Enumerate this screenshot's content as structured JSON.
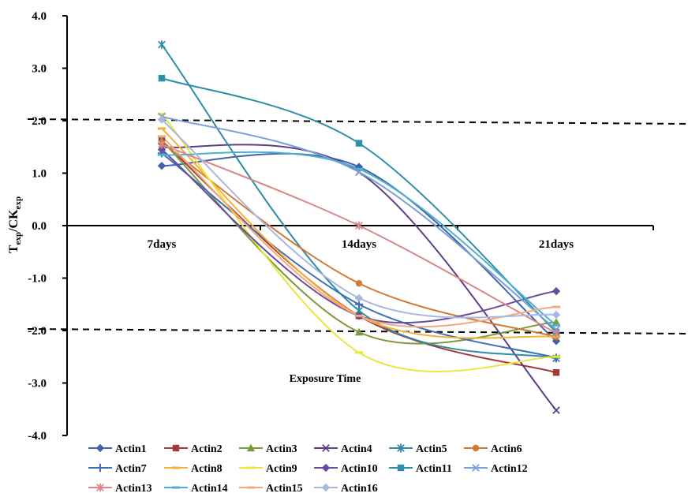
{
  "chart_data": {
    "type": "line",
    "title": "",
    "xlabel": "Exposure Time",
    "ylabel": {
      "main": "T",
      "sub1": "exp",
      "mid": "/CK",
      "sub2": "exp"
    },
    "categories": [
      "7days",
      "14days",
      "21days"
    ],
    "ylim": [
      -4.0,
      4.0
    ],
    "yticks": [
      "4.0",
      "3.0",
      "2.0",
      "1.0",
      "0.0",
      "-1.0",
      "-2.0",
      "-3.0",
      "-4.0"
    ],
    "ytick_values": [
      4,
      3,
      2,
      1,
      0,
      -1,
      -2,
      -3,
      -4
    ],
    "threshold_lines": [
      2.0,
      -2.0
    ],
    "grid": false,
    "legend_position": "bottom",
    "series": [
      {
        "name": "Actin1",
        "values": [
          1.14,
          1.12,
          -2.2
        ],
        "color": "#3f62a8",
        "marker": "diamond"
      },
      {
        "name": "Actin2",
        "values": [
          1.62,
          -1.72,
          -2.8
        ],
        "color": "#a43a38",
        "marker": "square"
      },
      {
        "name": "Actin3",
        "values": [
          1.62,
          -2.03,
          -1.84
        ],
        "color": "#7a9a3c",
        "marker": "triangle"
      },
      {
        "name": "Actin4",
        "values": [
          1.5,
          1.02,
          -3.52
        ],
        "color": "#5c3f87",
        "marker": "x"
      },
      {
        "name": "Actin5",
        "values": [
          3.45,
          -1.62,
          -2.53
        ],
        "color": "#2f8ba5",
        "marker": "star"
      },
      {
        "name": "Actin6",
        "values": [
          1.58,
          -1.1,
          -2.12
        ],
        "color": "#d07a35",
        "marker": "circle"
      },
      {
        "name": "Actin7",
        "values": [
          1.38,
          -1.5,
          -2.52
        ],
        "color": "#3d6fb5",
        "marker": "plus"
      },
      {
        "name": "Actin8",
        "values": [
          1.85,
          -1.72,
          -2.12
        ],
        "color": "#f4b23a",
        "marker": "dash"
      },
      {
        "name": "Actin9",
        "values": [
          2.13,
          -2.42,
          -2.5
        ],
        "color": "#e8e83a",
        "marker": "dash"
      },
      {
        "name": "Actin10",
        "values": [
          1.45,
          -1.72,
          -1.25
        ],
        "color": "#6a4c9c",
        "marker": "diamond"
      },
      {
        "name": "Actin11",
        "values": [
          2.81,
          1.57,
          -2.03
        ],
        "color": "#2e8fa8",
        "marker": "square"
      },
      {
        "name": "Actin12",
        "values": [
          2.08,
          1.02,
          -1.98
        ],
        "color": "#7b9fd8",
        "marker": "x"
      },
      {
        "name": "Actin13",
        "values": [
          1.55,
          0.0,
          -2.05
        ],
        "color": "#d8888a",
        "marker": "star"
      },
      {
        "name": "Actin14",
        "values": [
          1.35,
          1.08,
          -1.9
        ],
        "color": "#4fb0d0",
        "marker": "dash"
      },
      {
        "name": "Actin15",
        "values": [
          1.7,
          -1.72,
          -1.55
        ],
        "color": "#f4a880",
        "marker": "dash"
      },
      {
        "name": "Actin16",
        "values": [
          2.02,
          -1.38,
          -1.7
        ],
        "color": "#a8b8e0",
        "marker": "diamond"
      }
    ]
  }
}
